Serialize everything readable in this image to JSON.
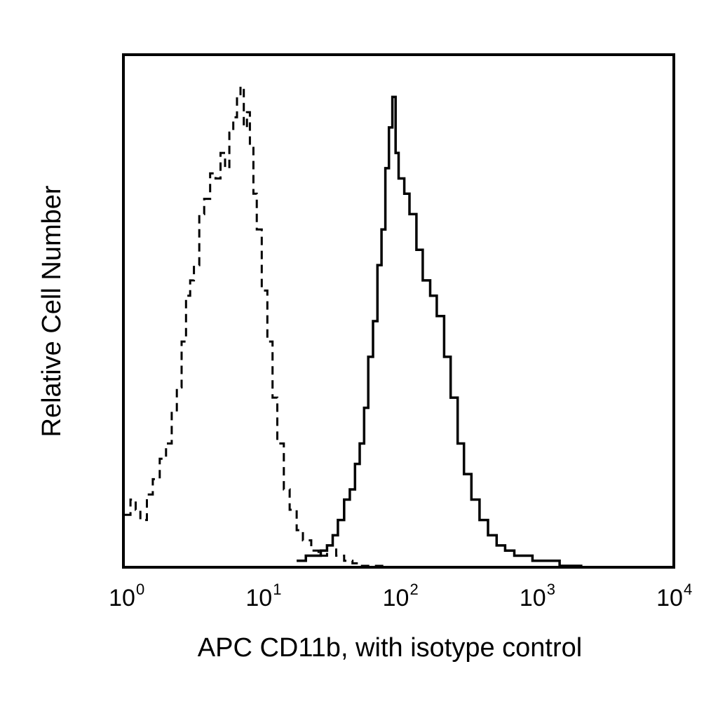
{
  "chart_data": {
    "type": "line",
    "title": "",
    "xlabel": "APC CD11b, with isotype control",
    "ylabel": "Relative Cell Number",
    "x_scale": "log",
    "xlim": [
      1,
      10000
    ],
    "ylim": [
      0,
      100
    ],
    "grid": false,
    "x_ticks": [
      {
        "base": "10",
        "exp": "0",
        "value": 1
      },
      {
        "base": "10",
        "exp": "1",
        "value": 10
      },
      {
        "base": "10",
        "exp": "2",
        "value": 100
      },
      {
        "base": "10",
        "exp": "3",
        "value": 1000
      },
      {
        "base": "10",
        "exp": "4",
        "value": 10000
      }
    ],
    "series": [
      {
        "style": "dashed",
        "color": "#000000",
        "x": [
          1.0,
          1.1,
          1.2,
          1.3,
          1.45,
          1.6,
          1.8,
          2.0,
          2.2,
          2.4,
          2.6,
          2.8,
          3.0,
          3.2,
          3.5,
          3.8,
          4.2,
          4.6,
          5.0,
          5.4,
          5.8,
          6.2,
          6.6,
          7.0,
          7.4,
          7.8,
          8.2,
          8.7,
          9.2,
          10.0,
          11.0,
          12.0,
          13.0,
          14.5,
          16.0,
          18.0,
          20.0,
          23.0,
          26.0,
          30.0,
          35.0,
          40.0,
          46.0,
          53.0,
          60.0,
          70.0,
          80.0
        ],
        "y": [
          10,
          13,
          11,
          9,
          14,
          17,
          21,
          24,
          30,
          35,
          44,
          53,
          56,
          59,
          69,
          72,
          77,
          76,
          81,
          78,
          85,
          88,
          92,
          94,
          86,
          89,
          82,
          73,
          66,
          54,
          44,
          33,
          24,
          15,
          11,
          7,
          5,
          3,
          2,
          4,
          2,
          1,
          0.5,
          0,
          0,
          0,
          0
        ]
      },
      {
        "style": "solid",
        "color": "#000000",
        "x": [
          18.0,
          21.0,
          24.0,
          27.0,
          30.0,
          33.0,
          36.0,
          40.0,
          44.0,
          48.0,
          52.0,
          56.0,
          60.0,
          65.0,
          70.0,
          75.0,
          80.0,
          85.0,
          90.0,
          95.0,
          100.0,
          110.0,
          120.0,
          135.0,
          150.0,
          170.0,
          190.0,
          215.0,
          240.0,
          270.0,
          300.0,
          340.0,
          390.0,
          450.0,
          520.0,
          600.0,
          700.0,
          800.0,
          950.0,
          1100.0,
          1300.0,
          1500.0,
          1800.0,
          2200.0
        ],
        "y": [
          1,
          2,
          2,
          3,
          4,
          6,
          9,
          13,
          15,
          20,
          24,
          31,
          41,
          48,
          59,
          66,
          78,
          86,
          92,
          81,
          76,
          73,
          69,
          62,
          56,
          53,
          49,
          41,
          33,
          24,
          18,
          13,
          9,
          6,
          4,
          3,
          2,
          2,
          1,
          1,
          1,
          0,
          0,
          0
        ]
      }
    ]
  }
}
